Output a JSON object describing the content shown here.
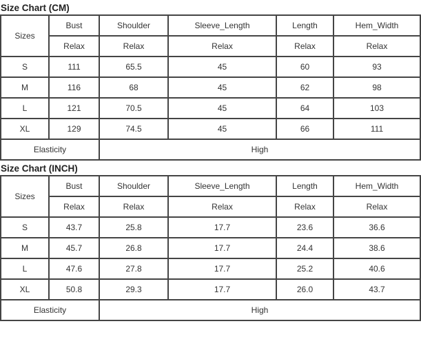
{
  "tables": [
    {
      "title": "Size Chart (CM)",
      "sizes_label": "Sizes",
      "headers": [
        "Bust",
        "Shoulder",
        "Sleeve_Length",
        "Length",
        "Hem_Width"
      ],
      "subheaders": [
        "Relax",
        "Relax",
        "Relax",
        "Relax",
        "Relax"
      ],
      "rows": [
        {
          "size": "S",
          "values": [
            "111",
            "65.5",
            "45",
            "60",
            "93"
          ]
        },
        {
          "size": "M",
          "values": [
            "116",
            "68",
            "45",
            "62",
            "98"
          ]
        },
        {
          "size": "L",
          "values": [
            "121",
            "70.5",
            "45",
            "64",
            "103"
          ]
        },
        {
          "size": "XL",
          "values": [
            "129",
            "74.5",
            "45",
            "66",
            "111"
          ]
        }
      ],
      "elasticity_label": "Elasticity",
      "elasticity_value": "High"
    },
    {
      "title": "Size Chart (INCH)",
      "sizes_label": "Sizes",
      "headers": [
        "Bust",
        "Shoulder",
        "Sleeve_Length",
        "Length",
        "Hem_Width"
      ],
      "subheaders": [
        "Relax",
        "Relax",
        "Relax",
        "Relax",
        "Relax"
      ],
      "rows": [
        {
          "size": "S",
          "values": [
            "43.7",
            "25.8",
            "17.7",
            "23.6",
            "36.6"
          ]
        },
        {
          "size": "M",
          "values": [
            "45.7",
            "26.8",
            "17.7",
            "24.4",
            "38.6"
          ]
        },
        {
          "size": "L",
          "values": [
            "47.6",
            "27.8",
            "17.7",
            "25.2",
            "40.6"
          ]
        },
        {
          "size": "XL",
          "values": [
            "50.8",
            "29.3",
            "17.7",
            "26.0",
            "43.7"
          ]
        }
      ],
      "elasticity_label": "Elasticity",
      "elasticity_value": "High"
    }
  ]
}
